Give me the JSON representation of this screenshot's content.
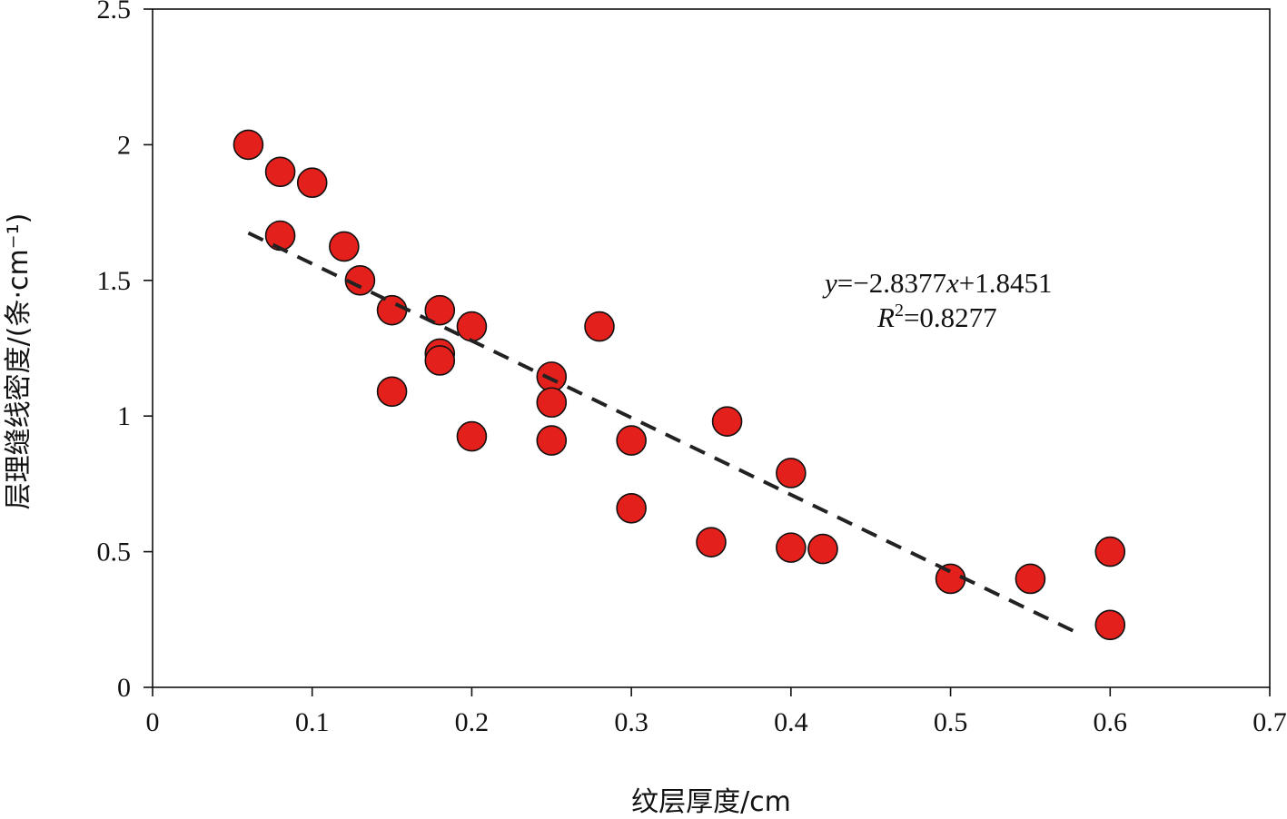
{
  "chart_data": {
    "type": "scatter",
    "xlabel": "纹层厚度/cm",
    "ylabel": "层理缝线密度/(条·cm⁻¹)",
    "xlim": [
      0,
      0.7
    ],
    "ylim": [
      0,
      2.5
    ],
    "x_ticks": [
      0,
      0.1,
      0.2,
      0.3,
      0.4,
      0.5,
      0.6,
      0.7
    ],
    "x_tick_labels": [
      "0",
      "0.1",
      "0.2",
      "0.3",
      "0.4",
      "0.5",
      "0.6",
      "0.7"
    ],
    "y_ticks": [
      0,
      0.5,
      1,
      1.5,
      2,
      2.5
    ],
    "y_tick_labels": [
      "0",
      "0.5",
      "1",
      "1.5",
      "2",
      "2.5"
    ],
    "grid": false,
    "marker_color": "#e3201b",
    "points": [
      {
        "x": 0.06,
        "y": 2.0
      },
      {
        "x": 0.08,
        "y": 1.9
      },
      {
        "x": 0.1,
        "y": 1.86
      },
      {
        "x": 0.08,
        "y": 1.665
      },
      {
        "x": 0.12,
        "y": 1.625
      },
      {
        "x": 0.13,
        "y": 1.5
      },
      {
        "x": 0.15,
        "y": 1.39
      },
      {
        "x": 0.18,
        "y": 1.39
      },
      {
        "x": 0.2,
        "y": 1.33
      },
      {
        "x": 0.28,
        "y": 1.33
      },
      {
        "x": 0.18,
        "y": 1.23
      },
      {
        "x": 0.18,
        "y": 1.205
      },
      {
        "x": 0.25,
        "y": 1.145
      },
      {
        "x": 0.15,
        "y": 1.09
      },
      {
        "x": 0.25,
        "y": 1.05
      },
      {
        "x": 0.36,
        "y": 0.98
      },
      {
        "x": 0.2,
        "y": 0.925
      },
      {
        "x": 0.25,
        "y": 0.91
      },
      {
        "x": 0.3,
        "y": 0.91
      },
      {
        "x": 0.4,
        "y": 0.79
      },
      {
        "x": 0.3,
        "y": 0.66
      },
      {
        "x": 0.35,
        "y": 0.535
      },
      {
        "x": 0.4,
        "y": 0.515
      },
      {
        "x": 0.42,
        "y": 0.51
      },
      {
        "x": 0.5,
        "y": 0.4
      },
      {
        "x": 0.55,
        "y": 0.4
      },
      {
        "x": 0.6,
        "y": 0.5
      },
      {
        "x": 0.6,
        "y": 0.23
      }
    ],
    "trendline": {
      "slope": -2.8377,
      "intercept": 1.8451,
      "x_range": [
        0.06,
        0.58
      ],
      "style": "dashed",
      "color": "#222222"
    },
    "annotation": {
      "equation_y": "y",
      "equation_rest1": "=−2.8377",
      "equation_x": "x",
      "equation_rest2": "+1.8451",
      "r2_symbol": "R",
      "r2_sup": "2",
      "r2_value": "=0.8277"
    }
  }
}
